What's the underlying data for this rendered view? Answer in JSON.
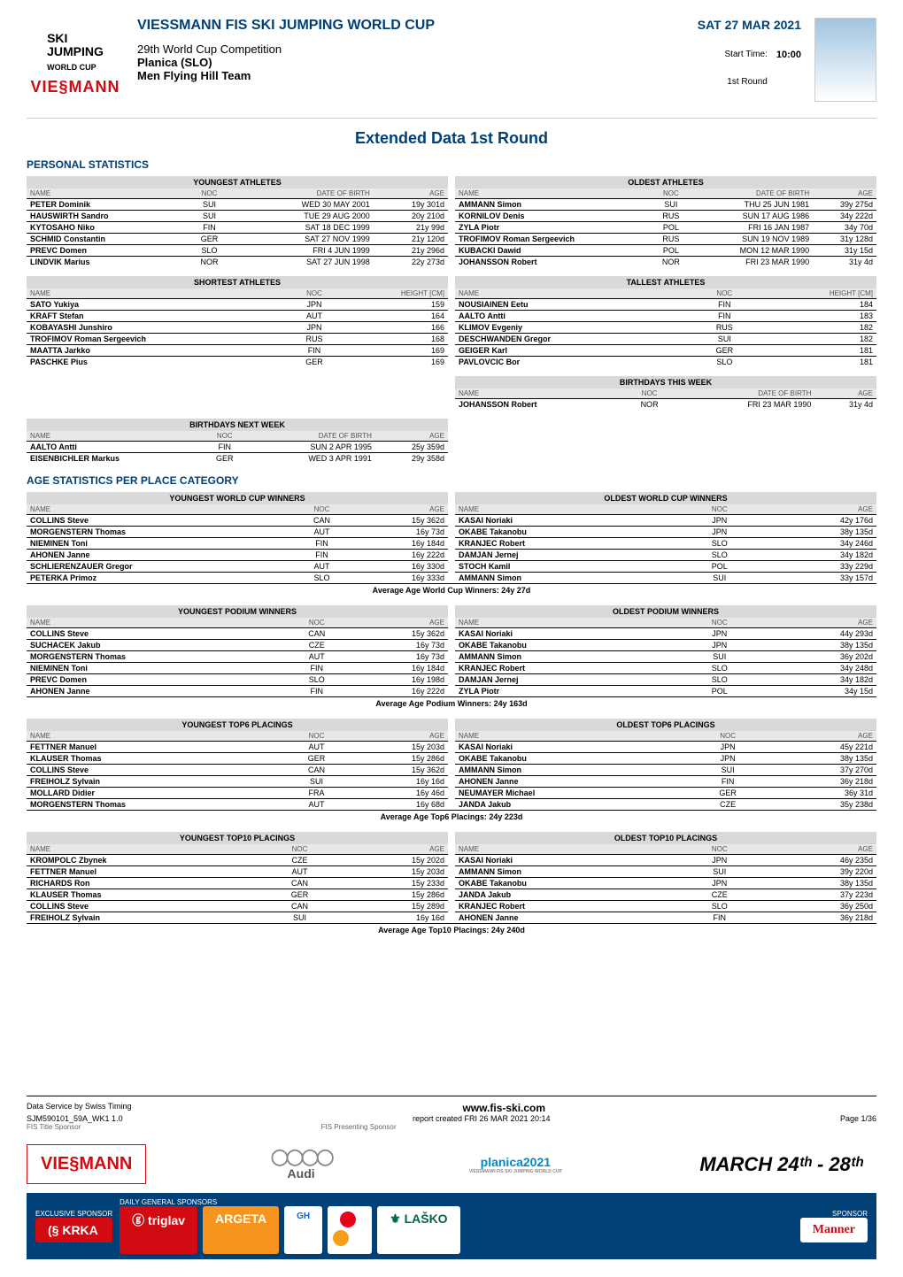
{
  "header": {
    "logo_ski_line1": "SKI",
    "logo_ski_line2": "JUMPING",
    "logo_ski_line3": "WORLD CUP",
    "logo_brand": "VIE§MANN",
    "title": "VIESSMANN FIS SKI JUMPING WORLD CUP",
    "competition": "29th World Cup Competition",
    "location": "Planica (SLO)",
    "event": "Men Flying Hill Team",
    "date": "SAT 27 MAR 2021",
    "start_label": "Start Time:",
    "round_label": "1st Round",
    "start_time": "10:00"
  },
  "section_title": "Extended Data 1st Round",
  "personal_stats_title": "PERSONAL STATISTICS",
  "age_stats_title": "AGE STATISTICS PER PLACE CATEGORY",
  "cols": {
    "name": "NAME",
    "noc": "NOC",
    "dob": "DATE OF BIRTH",
    "age": "AGE",
    "height": "HEIGHT [CM]"
  },
  "youngest_athletes": {
    "title": "YOUNGEST ATHLETES",
    "rows": [
      {
        "name": "PETER Dominik",
        "noc": "SUI",
        "dob": "WED 30 MAY 2001",
        "age": "19y 301d"
      },
      {
        "name": "HAUSWIRTH Sandro",
        "noc": "SUI",
        "dob": "TUE 29 AUG 2000",
        "age": "20y 210d"
      },
      {
        "name": "KYTOSAHO Niko",
        "noc": "FIN",
        "dob": "SAT 18 DEC 1999",
        "age": "21y 99d"
      },
      {
        "name": "SCHMID Constantin",
        "noc": "GER",
        "dob": "SAT 27 NOV 1999",
        "age": "21y 120d"
      },
      {
        "name": "PREVC Domen",
        "noc": "SLO",
        "dob": "FRI 4 JUN 1999",
        "age": "21y 296d"
      },
      {
        "name": "LINDVIK Marius",
        "noc": "NOR",
        "dob": "SAT 27 JUN 1998",
        "age": "22y 273d"
      }
    ]
  },
  "oldest_athletes": {
    "title": "OLDEST ATHLETES",
    "rows": [
      {
        "name": "AMMANN Simon",
        "noc": "SUI",
        "dob": "THU 25 JUN 1981",
        "age": "39y 275d"
      },
      {
        "name": "KORNILOV Denis",
        "noc": "RUS",
        "dob": "SUN 17 AUG 1986",
        "age": "34y 222d"
      },
      {
        "name": "ZYLA Piotr",
        "noc": "POL",
        "dob": "FRI 16 JAN 1987",
        "age": "34y 70d"
      },
      {
        "name": "TROFIMOV Roman Sergeevich",
        "noc": "RUS",
        "dob": "SUN 19 NOV 1989",
        "age": "31y 128d"
      },
      {
        "name": "KUBACKI Dawid",
        "noc": "POL",
        "dob": "MON 12 MAR 1990",
        "age": "31y 15d"
      },
      {
        "name": "JOHANSSON Robert",
        "noc": "NOR",
        "dob": "FRI 23 MAR 1990",
        "age": "31y 4d"
      }
    ]
  },
  "shortest_athletes": {
    "title": "SHORTEST ATHLETES",
    "rows": [
      {
        "name": "SATO Yukiya",
        "noc": "JPN",
        "h": "159"
      },
      {
        "name": "KRAFT Stefan",
        "noc": "AUT",
        "h": "164"
      },
      {
        "name": "KOBAYASHI Junshiro",
        "noc": "JPN",
        "h": "166"
      },
      {
        "name": "TROFIMOV Roman Sergeevich",
        "noc": "RUS",
        "h": "168"
      },
      {
        "name": "MAATTA Jarkko",
        "noc": "FIN",
        "h": "169"
      },
      {
        "name": "PASCHKE Pius",
        "noc": "GER",
        "h": "169"
      }
    ]
  },
  "tallest_athletes": {
    "title": "TALLEST ATHLETES",
    "rows": [
      {
        "name": "NOUSIAINEN Eetu",
        "noc": "FIN",
        "h": "184"
      },
      {
        "name": "AALTO Antti",
        "noc": "FIN",
        "h": "183"
      },
      {
        "name": "KLIMOV Evgeniy",
        "noc": "RUS",
        "h": "182"
      },
      {
        "name": "DESCHWANDEN Gregor",
        "noc": "SUI",
        "h": "182"
      },
      {
        "name": "GEIGER Karl",
        "noc": "GER",
        "h": "181"
      },
      {
        "name": "PAVLOVCIC Bor",
        "noc": "SLO",
        "h": "181"
      }
    ]
  },
  "bdays_this_week": {
    "title": "BIRTHDAYS THIS WEEK",
    "rows": [
      {
        "name": "JOHANSSON Robert",
        "noc": "NOR",
        "dob": "FRI 23 MAR 1990",
        "age": "31y 4d"
      }
    ]
  },
  "bdays_next_week": {
    "title": "BIRTHDAYS NEXT WEEK",
    "rows": [
      {
        "name": "AALTO Antti",
        "noc": "FIN",
        "dob": "SUN 2 APR 1995",
        "age": "25y 359d"
      },
      {
        "name": "EISENBICHLER Markus",
        "noc": "GER",
        "dob": "WED 3 APR 1991",
        "age": "29y 358d"
      }
    ]
  },
  "youngest_wc_winners": {
    "title": "YOUNGEST WORLD CUP WINNERS",
    "rows": [
      {
        "name": "COLLINS Steve",
        "noc": "CAN",
        "age": "15y 362d"
      },
      {
        "name": "MORGENSTERN Thomas",
        "noc": "AUT",
        "age": "16y 73d"
      },
      {
        "name": "NIEMINEN Toni",
        "noc": "FIN",
        "age": "16y 184d"
      },
      {
        "name": "AHONEN Janne",
        "noc": "FIN",
        "age": "16y 222d"
      },
      {
        "name": "SCHLIERENZAUER Gregor",
        "noc": "AUT",
        "age": "16y 330d"
      },
      {
        "name": "PETERKA Primoz",
        "noc": "SLO",
        "age": "16y 333d"
      }
    ]
  },
  "oldest_wc_winners": {
    "title": "OLDEST WORLD CUP WINNERS",
    "rows": [
      {
        "name": "KASAI Noriaki",
        "noc": "JPN",
        "age": "42y 176d"
      },
      {
        "name": "OKABE Takanobu",
        "noc": "JPN",
        "age": "38y 135d"
      },
      {
        "name": "KRANJEC Robert",
        "noc": "SLO",
        "age": "34y 246d"
      },
      {
        "name": "DAMJAN Jernej",
        "noc": "SLO",
        "age": "34y 182d"
      },
      {
        "name": "STOCH Kamil",
        "noc": "POL",
        "age": "33y 229d"
      },
      {
        "name": "AMMANN Simon",
        "noc": "SUI",
        "age": "33y 157d"
      }
    ]
  },
  "avg_wc": "Average Age World Cup Winners: 24y 27d",
  "youngest_podium": {
    "title": "YOUNGEST PODIUM WINNERS",
    "rows": [
      {
        "name": "COLLINS Steve",
        "noc": "CAN",
        "age": "15y 362d"
      },
      {
        "name": "SUCHACEK Jakub",
        "noc": "CZE",
        "age": "16y 73d"
      },
      {
        "name": "MORGENSTERN Thomas",
        "noc": "AUT",
        "age": "16y 73d"
      },
      {
        "name": "NIEMINEN Toni",
        "noc": "FIN",
        "age": "16y 184d"
      },
      {
        "name": "PREVC Domen",
        "noc": "SLO",
        "age": "16y 198d"
      },
      {
        "name": "AHONEN Janne",
        "noc": "FIN",
        "age": "16y 222d"
      }
    ]
  },
  "oldest_podium": {
    "title": "OLDEST PODIUM WINNERS",
    "rows": [
      {
        "name": "KASAI Noriaki",
        "noc": "JPN",
        "age": "44y 293d"
      },
      {
        "name": "OKABE Takanobu",
        "noc": "JPN",
        "age": "38y 135d"
      },
      {
        "name": "AMMANN Simon",
        "noc": "SUI",
        "age": "36y 202d"
      },
      {
        "name": "KRANJEC Robert",
        "noc": "SLO",
        "age": "34y 248d"
      },
      {
        "name": "DAMJAN Jernej",
        "noc": "SLO",
        "age": "34y 182d"
      },
      {
        "name": "ZYLA Piotr",
        "noc": "POL",
        "age": "34y 15d"
      }
    ]
  },
  "avg_podium": "Average Age Podium Winners: 24y 163d",
  "youngest_top6": {
    "title": "YOUNGEST TOP6 PLACINGS",
    "rows": [
      {
        "name": "FETTNER Manuel",
        "noc": "AUT",
        "age": "15y 203d"
      },
      {
        "name": "KLAUSER Thomas",
        "noc": "GER",
        "age": "15y 286d"
      },
      {
        "name": "COLLINS Steve",
        "noc": "CAN",
        "age": "15y 362d"
      },
      {
        "name": "FREIHOLZ Sylvain",
        "noc": "SUI",
        "age": "16y 16d"
      },
      {
        "name": "MOLLARD Didier",
        "noc": "FRA",
        "age": "16y 46d"
      },
      {
        "name": "MORGENSTERN Thomas",
        "noc": "AUT",
        "age": "16y 68d"
      }
    ]
  },
  "oldest_top6": {
    "title": "OLDEST TOP6 PLACINGS",
    "rows": [
      {
        "name": "KASAI Noriaki",
        "noc": "JPN",
        "age": "45y 221d"
      },
      {
        "name": "OKABE Takanobu",
        "noc": "JPN",
        "age": "38y 135d"
      },
      {
        "name": "AMMANN Simon",
        "noc": "SUI",
        "age": "37y 270d"
      },
      {
        "name": "AHONEN Janne",
        "noc": "FIN",
        "age": "36y 218d"
      },
      {
        "name": "NEUMAYER Michael",
        "noc": "GER",
        "age": "36y 31d"
      },
      {
        "name": "JANDA Jakub",
        "noc": "CZE",
        "age": "35y 238d"
      }
    ]
  },
  "avg_top6": "Average Age Top6 Placings: 24y 223d",
  "youngest_top10": {
    "title": "YOUNGEST TOP10 PLACINGS",
    "rows": [
      {
        "name": "KROMPOLC Zbynek",
        "noc": "CZE",
        "age": "15y 202d"
      },
      {
        "name": "FETTNER Manuel",
        "noc": "AUT",
        "age": "15y 203d"
      },
      {
        "name": "RICHARDS Ron",
        "noc": "CAN",
        "age": "15y 233d"
      },
      {
        "name": "KLAUSER Thomas",
        "noc": "GER",
        "age": "15y 286d"
      },
      {
        "name": "COLLINS Steve",
        "noc": "CAN",
        "age": "15y 289d"
      },
      {
        "name": "FREIHOLZ Sylvain",
        "noc": "SUI",
        "age": "16y 16d"
      }
    ]
  },
  "oldest_top10": {
    "title": "OLDEST TOP10 PLACINGS",
    "rows": [
      {
        "name": "KASAI Noriaki",
        "noc": "JPN",
        "age": "46y 235d"
      },
      {
        "name": "AMMANN Simon",
        "noc": "SUI",
        "age": "39y 220d"
      },
      {
        "name": "OKABE Takanobu",
        "noc": "JPN",
        "age": "38y 135d"
      },
      {
        "name": "JANDA Jakub",
        "noc": "CZE",
        "age": "37y 223d"
      },
      {
        "name": "KRANJEC Robert",
        "noc": "SLO",
        "age": "36y 250d"
      },
      {
        "name": "AHONEN Janne",
        "noc": "FIN",
        "age": "36y 218d"
      }
    ]
  },
  "avg_top10": "Average Age Top10 Placings: 24y 240d",
  "footer": {
    "service": "Data Service by Swiss Timing",
    "url": "www.fis-ski.com",
    "code": "SJM590101_59A_WK1 1.0",
    "report": "report created FRI 26 MAR 2021 20:14",
    "page": "Page 1/36",
    "fis_title": "FIS Title Sponsor",
    "fis_presenting": "FIS Presenting Sponsor",
    "viessmann": "VIE§MANN",
    "audi": "Audi",
    "planica": "planica2021",
    "planica_sub": "VIESSMANN FIS SKI JUMPING WORLD CUP",
    "march": "MARCH 24ᵗʰ - 28ᵗʰ",
    "exclusive": "EXCLUSIVE SPONSOR",
    "daily": "DAILY GENERAL SPONSORS",
    "sponsor": "SPONSOR",
    "krka": "(§ KRKA",
    "triglav": "ⓖ triglav",
    "argeta": "ARGETA",
    "gh": "GH",
    "lasko": "⚜ LAŠKO",
    "manner": "Manner"
  },
  "colors": {
    "blue": "#004077",
    "red": "#d20a11",
    "gray_header": "#d9d9d9",
    "gray_sub": "#e8e8e8"
  }
}
